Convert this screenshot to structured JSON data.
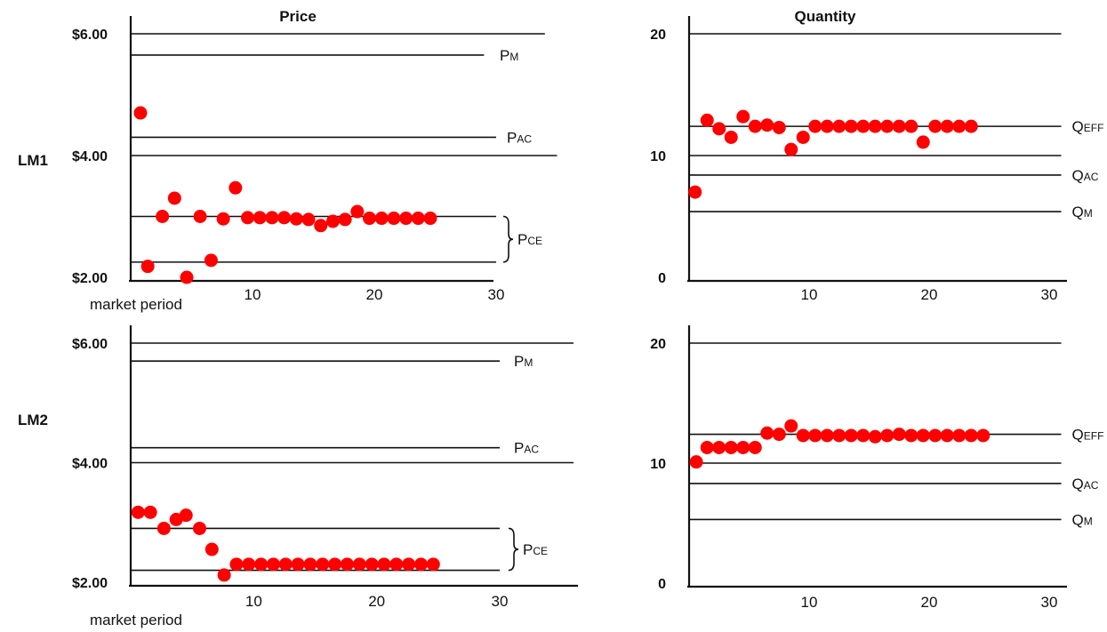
{
  "figure": {
    "column_titles": {
      "price": "Price",
      "quantity": "Quantity"
    },
    "row_labels": [
      "LM1",
      "LM2"
    ],
    "x_axis_caption": "market period",
    "x_ticks": [
      "10",
      "20",
      "30"
    ]
  },
  "chart_data": [
    {
      "id": "lm1-price",
      "type": "scatter",
      "row": "LM1",
      "column": "Price",
      "xlim": [
        0,
        36
      ],
      "ylim": [
        2.0,
        6.0
      ],
      "x_ticks": [
        10,
        20,
        30
      ],
      "y_ticks": [
        {
          "value": 2.0,
          "label": "$2.00"
        },
        {
          "value": 4.0,
          "label": "$4.00"
        },
        {
          "value": 6.0,
          "label": "$6.00"
        }
      ],
      "xlabel": "market period",
      "reference_lines": [
        {
          "y": 6.0,
          "x_end": 34,
          "label": ""
        },
        {
          "y": 5.65,
          "x_end": 29,
          "label": "PM"
        },
        {
          "y": 4.3,
          "x_end": 30,
          "label": "PAC"
        },
        {
          "y": 4.0,
          "x_end": 35,
          "label": ""
        },
        {
          "y": 3.0,
          "x_end": 30,
          "label": ""
        },
        {
          "y": 2.25,
          "x_end": 30,
          "label": ""
        }
      ],
      "bracket": {
        "y_top": 3.0,
        "y_bottom": 2.25,
        "label": "PCE"
      },
      "x": [
        0.8,
        1.4,
        2.6,
        3.6,
        4.6,
        5.7,
        6.6,
        7.6,
        8.6,
        9.6,
        10.6,
        11.6,
        12.6,
        13.6,
        14.6,
        15.6,
        16.6,
        17.6,
        18.6,
        19.6,
        20.6,
        21.6,
        22.6,
        23.6,
        24.6
      ],
      "y": [
        4.7,
        2.18,
        3.0,
        3.3,
        2.0,
        3.0,
        2.28,
        2.96,
        3.47,
        2.98,
        2.98,
        2.98,
        2.98,
        2.96,
        2.95,
        2.85,
        2.92,
        2.95,
        3.08,
        2.97,
        2.97,
        2.97,
        2.97,
        2.97,
        2.97
      ]
    },
    {
      "id": "lm1-quantity",
      "type": "scatter",
      "row": "LM1",
      "column": "Quantity",
      "xlim": [
        0,
        30
      ],
      "ylim": [
        0,
        20
      ],
      "x_ticks": [
        10,
        20,
        30
      ],
      "y_ticks": [
        {
          "value": 0,
          "label": "0"
        },
        {
          "value": 10,
          "label": "10"
        },
        {
          "value": 20,
          "label": "20"
        }
      ],
      "reference_lines": [
        {
          "y": 20,
          "x_end": 31,
          "label": ""
        },
        {
          "y": 12.4,
          "x_end": 31,
          "label": "QEFF"
        },
        {
          "y": 10,
          "x_end": 31,
          "label": ""
        },
        {
          "y": 8.4,
          "x_end": 31,
          "label": "QAC"
        },
        {
          "y": 5.4,
          "x_end": 31,
          "label": "QM"
        }
      ],
      "x": [
        0.5,
        1.5,
        2.5,
        3.5,
        4.5,
        5.5,
        6.5,
        7.5,
        8.5,
        9.5,
        10.5,
        11.5,
        12.5,
        13.5,
        14.5,
        15.5,
        16.5,
        17.5,
        18.5,
        19.5,
        20.5,
        21.5,
        22.5,
        23.5
      ],
      "y": [
        7,
        12.9,
        12.2,
        11.5,
        13.2,
        12.4,
        12.5,
        12.3,
        10.5,
        11.5,
        12.4,
        12.4,
        12.4,
        12.4,
        12.4,
        12.4,
        12.4,
        12.4,
        12.4,
        11.1,
        12.4,
        12.4,
        12.4,
        12.4
      ]
    },
    {
      "id": "lm2-price",
      "type": "scatter",
      "row": "LM2",
      "column": "Price",
      "xlim": [
        0,
        36
      ],
      "ylim": [
        2.0,
        6.0
      ],
      "x_ticks": [
        10,
        20,
        30
      ],
      "y_ticks": [
        {
          "value": 2.0,
          "label": "$2.00"
        },
        {
          "value": 4.0,
          "label": "$4.00"
        },
        {
          "value": 6.0,
          "label": "$6.00"
        }
      ],
      "xlabel": "market period",
      "reference_lines": [
        {
          "y": 6.0,
          "x_end": 36,
          "label": ""
        },
        {
          "y": 5.7,
          "x_end": 30,
          "label": "PM"
        },
        {
          "y": 4.25,
          "x_end": 30,
          "label": "PAC"
        },
        {
          "y": 4.0,
          "x_end": 36,
          "label": ""
        },
        {
          "y": 2.9,
          "x_end": 30,
          "label": ""
        },
        {
          "y": 2.2,
          "x_end": 30,
          "label": ""
        }
      ],
      "bracket": {
        "y_top": 2.9,
        "y_bottom": 2.2,
        "label": "PCE"
      },
      "x": [
        0.6,
        1.6,
        2.7,
        3.7,
        4.5,
        5.6,
        6.6,
        7.6,
        8.6,
        9.6,
        10.6,
        11.6,
        12.6,
        13.6,
        14.6,
        15.6,
        16.6,
        17.6,
        18.6,
        19.6,
        20.6,
        21.6,
        22.6,
        23.6,
        24.6
      ],
      "y": [
        3.17,
        3.17,
        2.9,
        3.05,
        3.12,
        2.9,
        2.55,
        2.12,
        2.3,
        2.3,
        2.3,
        2.3,
        2.3,
        2.3,
        2.3,
        2.3,
        2.3,
        2.3,
        2.3,
        2.3,
        2.3,
        2.3,
        2.3,
        2.3,
        2.3
      ]
    },
    {
      "id": "lm2-quantity",
      "type": "scatter",
      "row": "LM2",
      "column": "Quantity",
      "xlim": [
        0,
        30
      ],
      "ylim": [
        0,
        20
      ],
      "x_ticks": [
        10,
        20,
        30
      ],
      "y_ticks": [
        {
          "value": 0,
          "label": "0"
        },
        {
          "value": 10,
          "label": "10"
        },
        {
          "value": 20,
          "label": "20"
        }
      ],
      "reference_lines": [
        {
          "y": 20,
          "x_end": 31,
          "label": ""
        },
        {
          "y": 12.4,
          "x_end": 31,
          "label": "QEFF"
        },
        {
          "y": 10,
          "x_end": 31,
          "label": ""
        },
        {
          "y": 8.3,
          "x_end": 31,
          "label": "QAC"
        },
        {
          "y": 5.3,
          "x_end": 31,
          "label": "QM"
        }
      ],
      "x": [
        0.6,
        1.5,
        2.5,
        3.5,
        4.5,
        5.5,
        6.5,
        7.5,
        8.5,
        9.5,
        10.5,
        11.5,
        12.5,
        13.5,
        14.5,
        15.5,
        16.5,
        17.5,
        18.5,
        19.5,
        20.5,
        21.5,
        22.5,
        23.5,
        24.5
      ],
      "y": [
        10.1,
        11.3,
        11.3,
        11.3,
        11.3,
        11.3,
        12.5,
        12.4,
        13.1,
        12.3,
        12.3,
        12.3,
        12.3,
        12.3,
        12.3,
        12.2,
        12.3,
        12.4,
        12.3,
        12.3,
        12.3,
        12.3,
        12.3,
        12.3,
        12.3
      ]
    }
  ],
  "colors": {
    "point": "#ff0000",
    "ink": "#111111"
  }
}
